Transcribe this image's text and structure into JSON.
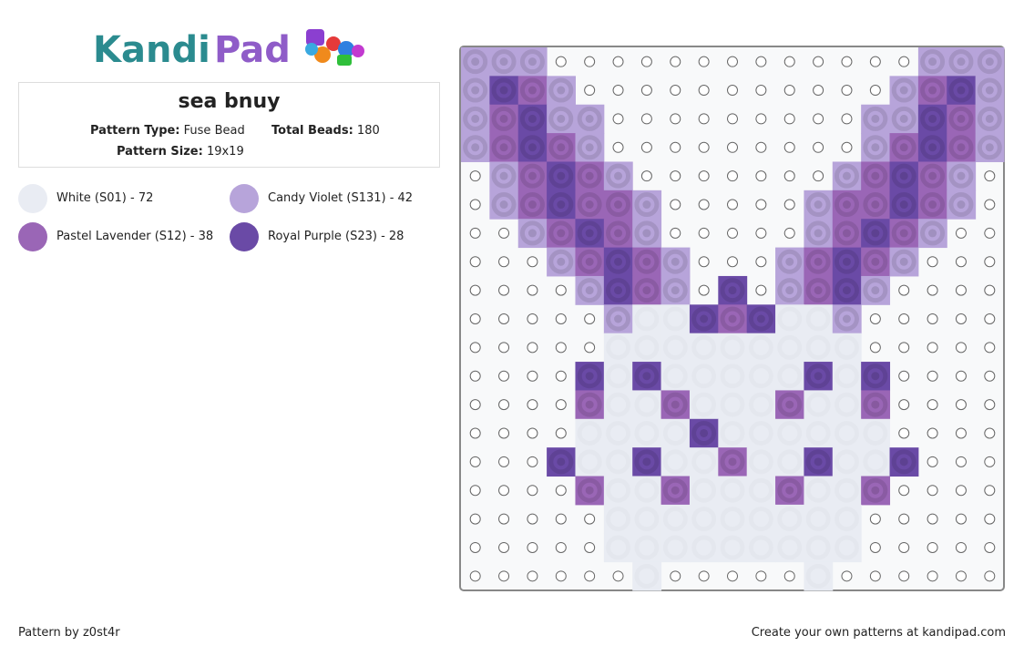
{
  "logo": {
    "part1": "Kandi",
    "part2": "Pad"
  },
  "pattern": {
    "title": "sea bnuy",
    "type_label": "Pattern Type:",
    "type": "Fuse Bead",
    "beads_label": "Total Beads:",
    "beads": "180",
    "size_label": "Pattern Size:",
    "size": "19x19"
  },
  "colors": [
    {
      "label": "White (S01) - 72",
      "color": "#e9ecf3"
    },
    {
      "label": "Candy Violet (S131) - 42",
      "color": "#b7a4da"
    },
    {
      "label": "Pastel Lavender (S12) - 38",
      "color": "#9a66b6"
    },
    {
      "label": "Royal Purple (S23) - 28",
      "color": "#6a4aa6"
    }
  ],
  "footer": {
    "left": "Pattern by z0st4r",
    "right": "Create your own patterns at kandipad.com"
  }
}
